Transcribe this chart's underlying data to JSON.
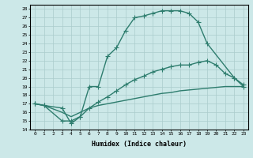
{
  "xlabel": "Humidex (Indice chaleur)",
  "ylabel": "",
  "xlim": [
    -0.5,
    23.5
  ],
  "ylim": [
    14,
    28.5
  ],
  "yticks": [
    14,
    15,
    16,
    17,
    18,
    19,
    20,
    21,
    22,
    23,
    24,
    25,
    26,
    27,
    28
  ],
  "xticks": [
    0,
    1,
    2,
    3,
    4,
    5,
    6,
    7,
    8,
    9,
    10,
    11,
    12,
    13,
    14,
    15,
    16,
    17,
    18,
    19,
    20,
    21,
    22,
    23
  ],
  "bg_color": "#cce8e8",
  "line_color": "#2e7d6e",
  "grid_color": "#aacccc",
  "line1_x": [
    0,
    1,
    3,
    4,
    5,
    6,
    7,
    8,
    9,
    10,
    11,
    12,
    13,
    14,
    15,
    16,
    17,
    18,
    19,
    22,
    23
  ],
  "line1_y": [
    17.0,
    16.8,
    16.5,
    14.7,
    15.5,
    19.0,
    19.0,
    22.5,
    23.5,
    25.5,
    27.0,
    27.2,
    27.5,
    27.8,
    27.8,
    27.8,
    27.5,
    26.5,
    24.0,
    20.0,
    19.2
  ],
  "line2_x": [
    0,
    1,
    3,
    4,
    5,
    6,
    7,
    8,
    9,
    10,
    11,
    12,
    13,
    14,
    15,
    16,
    17,
    18,
    19,
    20,
    21,
    22,
    23
  ],
  "line2_y": [
    17.0,
    16.8,
    15.0,
    15.0,
    15.5,
    16.5,
    17.2,
    17.8,
    18.5,
    19.2,
    19.8,
    20.2,
    20.7,
    21.0,
    21.3,
    21.5,
    21.5,
    21.8,
    22.0,
    21.5,
    20.5,
    20.0,
    19.0
  ],
  "line3_x": [
    0,
    1,
    3,
    4,
    5,
    6,
    7,
    8,
    9,
    10,
    11,
    12,
    13,
    14,
    15,
    16,
    17,
    18,
    19,
    20,
    21,
    22,
    23
  ],
  "line3_y": [
    17.0,
    16.8,
    16.0,
    15.5,
    16.0,
    16.5,
    16.8,
    17.0,
    17.2,
    17.4,
    17.6,
    17.8,
    18.0,
    18.2,
    18.3,
    18.5,
    18.6,
    18.7,
    18.8,
    18.9,
    19.0,
    19.0,
    19.0
  ],
  "marker": "+",
  "markersize": 4,
  "linewidth": 1.0
}
